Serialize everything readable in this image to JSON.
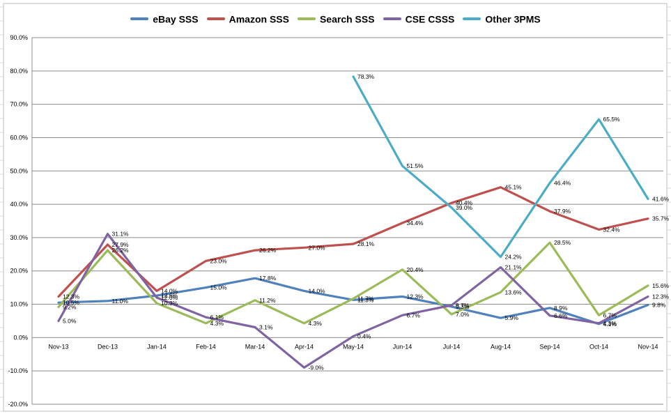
{
  "chart_data": {
    "type": "line",
    "categories": [
      "Nov-13",
      "Dec-13",
      "Jan-14",
      "Feb-14",
      "Mar-14",
      "Apr-14",
      "May-14",
      "Jun-14",
      "Jul-14",
      "Aug-14",
      "Sep-14",
      "Oct-14",
      "Nov-14"
    ],
    "ylim": [
      -20,
      90
    ],
    "ytick_step": 10,
    "ytick_labels": [
      "-20.0%",
      "-10.0%",
      "0.0%",
      "10.0%",
      "20.0%",
      "30.0%",
      "40.0%",
      "50.0%",
      "60.0%",
      "70.0%",
      "80.0%",
      "90.0%"
    ],
    "grid": true,
    "legend_position": "top",
    "series": [
      {
        "name": "eBay SSS",
        "color": "#4f81bd",
        "values": [
          10.5,
          11.0,
          12.6,
          15.0,
          17.8,
          14.0,
          11.3,
          12.3,
          9.3,
          5.9,
          8.9,
          4.1,
          9.8
        ],
        "labels": [
          "10.5%",
          "11.0%",
          "12.6%",
          "15.0%",
          "17.8%",
          "14.0%",
          "11.3%",
          "12.3%",
          "9.3%",
          "5.9%",
          "8.9%",
          "4.1%",
          "9.8%"
        ]
      },
      {
        "name": "Amazon SSS",
        "color": "#c0504d",
        "values": [
          12.3,
          27.9,
          14.0,
          23.0,
          26.2,
          27.0,
          28.1,
          34.4,
          40.4,
          45.1,
          37.9,
          32.4,
          35.7
        ],
        "labels": [
          "12.3%",
          "27.9%",
          "14.0%",
          "23.0%",
          "26.2%",
          "27.0%",
          "28.1%",
          "34.4%",
          "40.4%",
          "45.1%",
          "37.9%",
          "32.4%",
          "35.7%"
        ]
      },
      {
        "name": "Search SSS",
        "color": "#9bbb59",
        "values": [
          9.2,
          26.2,
          10.3,
          4.3,
          11.2,
          4.3,
          11.7,
          20.4,
          7.0,
          13.6,
          28.5,
          6.7,
          15.6
        ],
        "labels": [
          "9.2%",
          "26.2%",
          "10.3%",
          "4.3%",
          "11.2%",
          "4.3%",
          "11.7%",
          "20.4%",
          "7.0%",
          "13.6%",
          "28.5%",
          "6.7%",
          "15.6%"
        ]
      },
      {
        "name": "CSE CSSS",
        "color": "#8064a2",
        "values": [
          5.0,
          31.1,
          12.0,
          6.1,
          3.1,
          -9.0,
          0.4,
          6.7,
          9.7,
          21.1,
          6.6,
          4.3,
          12.3
        ],
        "labels": [
          "5.0%",
          "31.1%",
          "12.0%",
          "6.1%",
          "3.1%",
          "-9.0%",
          "0.4%",
          "6.7%",
          "9.7%",
          "21.1%",
          "6.6%",
          "4.3%",
          "12.3%"
        ]
      },
      {
        "name": "Other 3PMS",
        "color": "#4bacc6",
        "values": [
          null,
          null,
          null,
          null,
          null,
          null,
          78.3,
          51.5,
          39.0,
          24.2,
          46.4,
          65.5,
          41.6
        ],
        "labels": [
          null,
          null,
          null,
          null,
          null,
          null,
          "78.3%",
          "51.5%",
          "39.0%",
          "24.2%",
          "46.4%",
          "65.5%",
          "41.6%"
        ]
      }
    ]
  }
}
